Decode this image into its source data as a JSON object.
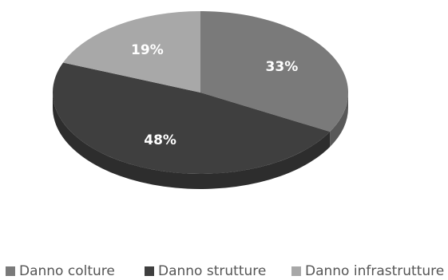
{
  "chart_data": {
    "type": "pie",
    "categories": [
      "Danno colture",
      "Danno strutture",
      "Danno infrastrutture"
    ],
    "values": [
      33,
      48,
      19
    ],
    "value_labels": [
      "33%",
      "48%",
      "19%"
    ],
    "colors": [
      "#7a7a7a",
      "#3f3f3f",
      "#a8a8a8"
    ],
    "legend_position": "bottom",
    "style": "3d"
  }
}
